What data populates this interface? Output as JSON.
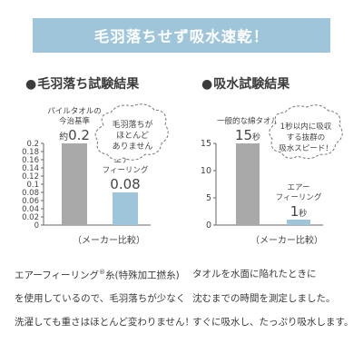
{
  "banner": {
    "title": "毛羽落ちせず吸水速乾！"
  },
  "colors": {
    "banner": "#9ec5d9",
    "bar_gray": "#a9a9a9",
    "bar_blue": "#9ec5d9",
    "text": "#444444"
  },
  "left_panel": {
    "heading_dot": "●",
    "heading": "毛羽落ち試験結果",
    "bubble": [
      "毛羽落ちが",
      "ほとんど",
      "ありません"
    ],
    "note": "（メーカー比較）"
  },
  "right_panel": {
    "heading_dot": "●",
    "heading": "吸水試験結果",
    "bubble": [
      "1秒以内に吸収",
      "する抜群の",
      "吸水スピード！"
    ],
    "note": "（メーカー比較）"
  },
  "text_left": {
    "line1a": "エアーフィーリング",
    "reg": "®",
    "line1b": "糸(特殊加工撚糸)",
    "line2": "を使用しているので、毛羽落ちが少なく",
    "line3": "洗濯しても重さはほとんど変わりません！"
  },
  "text_right": {
    "line1": "タオルを水面に陥れたときに",
    "line2": "沈むまでの時間を測定しました。",
    "line3": "すぐに吸水し、たっぷり吸水します。"
  },
  "chart_data": [
    {
      "type": "bar",
      "title": "毛羽落ち試験結果",
      "ylim": [
        0,
        0.2
      ],
      "yticks": [
        "0",
        "0.02",
        "0.04",
        "0.06",
        "0.08",
        "0.1",
        "0.12",
        "0.14",
        "0.16",
        "0.18",
        "0.2"
      ],
      "grid": false,
      "categories": [
        "パイルタオルの今治基準",
        "エアーフィーリング"
      ],
      "cat_lines": [
        [
          "パイルタオルの",
          "今治基準"
        ],
        [
          "エアー",
          "フィーリング"
        ]
      ],
      "values": [
        0.2,
        0.08
      ],
      "value_prefix": [
        "約",
        ""
      ],
      "value_text": [
        "0.2",
        "0.08"
      ],
      "value_unit": [
        "",
        ""
      ],
      "colors": [
        "#a9a9a9",
        "#9ec5d9"
      ]
    },
    {
      "type": "bar",
      "title": "吸水試験結果",
      "ylim": [
        0,
        15
      ],
      "yticks": [
        "0",
        "5",
        "10",
        "15"
      ],
      "grid": false,
      "categories": [
        "一般的な綿タオル",
        "エアーフィーリング"
      ],
      "cat_lines": [
        [
          "一般的な綿タオル"
        ],
        [
          "エアー",
          "フィーリング"
        ]
      ],
      "values": [
        15,
        1
      ],
      "value_prefix": [
        "",
        ""
      ],
      "value_text": [
        "15",
        "1"
      ],
      "value_unit": [
        "秒",
        "秒"
      ],
      "colors": [
        "#a9a9a9",
        "#9ec5d9"
      ]
    }
  ]
}
